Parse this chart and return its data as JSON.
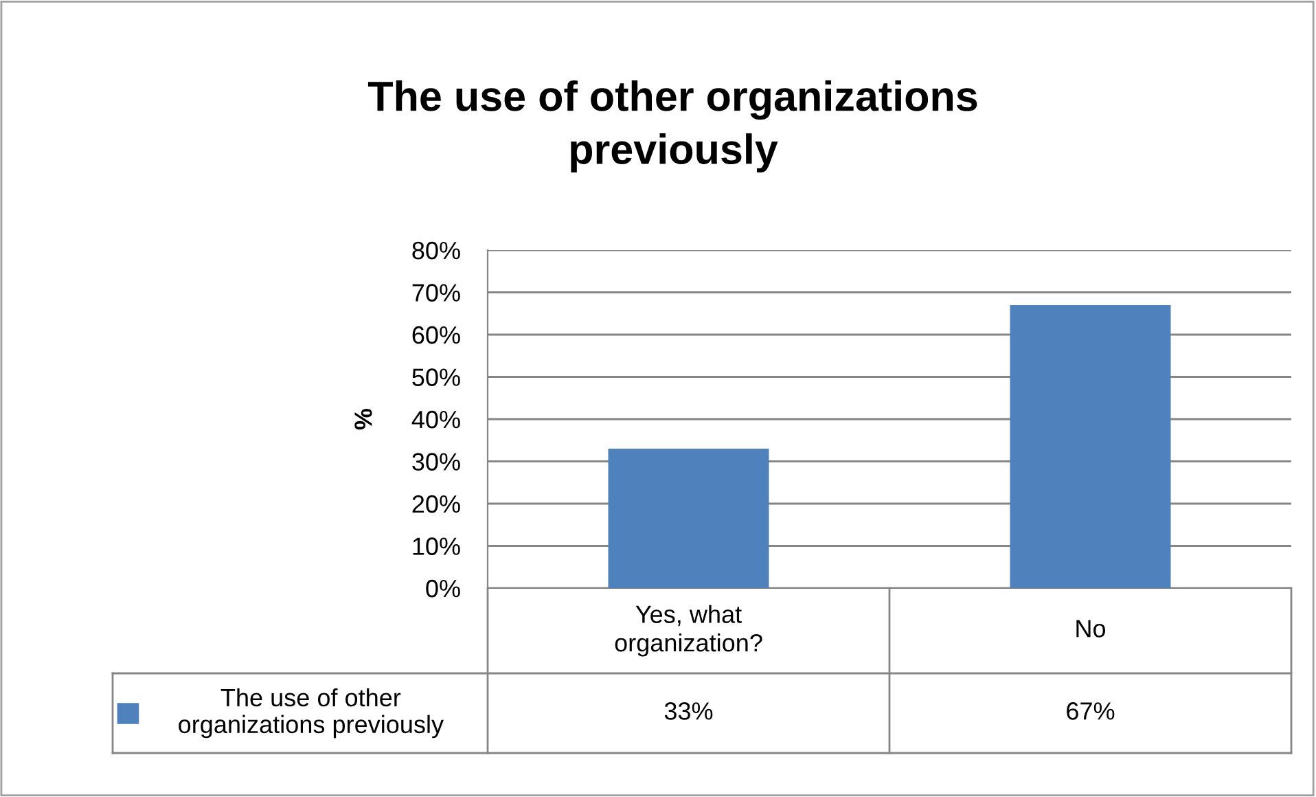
{
  "chart_data": {
    "type": "bar",
    "title": "The use of other organizations previously",
    "ylabel": "%",
    "categories": [
      "Yes, what organization?",
      "No"
    ],
    "series": [
      {
        "name": "The use of other organizations previously",
        "color": "#4f81bd",
        "values": [
          33,
          67
        ],
        "value_labels": [
          "33%",
          "67%"
        ]
      }
    ],
    "ylim": [
      0,
      80
    ],
    "yticks": [
      {
        "value": 0,
        "label": "0%"
      },
      {
        "value": 10,
        "label": "10%"
      },
      {
        "value": 20,
        "label": "20%"
      },
      {
        "value": 30,
        "label": "30%"
      },
      {
        "value": 40,
        "label": "40%"
      },
      {
        "value": 50,
        "label": "50%"
      },
      {
        "value": 60,
        "label": "60%"
      },
      {
        "value": 70,
        "label": "70%"
      },
      {
        "value": 80,
        "label": "80%"
      }
    ],
    "grid": "y",
    "legend": "bottom"
  }
}
